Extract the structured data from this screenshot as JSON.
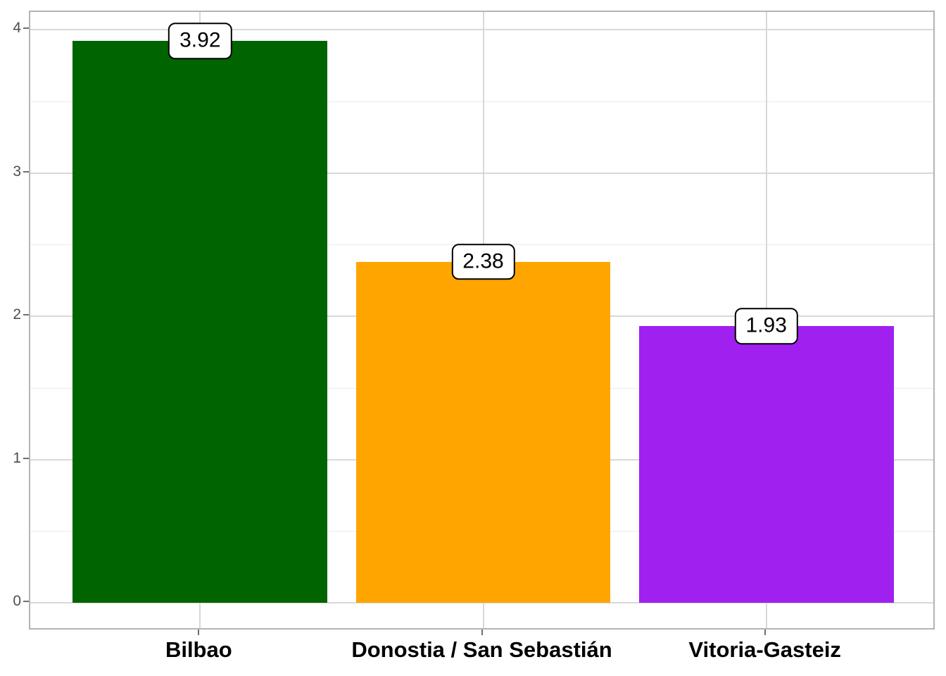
{
  "chart_data": {
    "type": "bar",
    "categories": [
      "Bilbao",
      "Donostia / San Sebastián",
      "Vitoria-Gasteiz"
    ],
    "values": [
      3.92,
      2.38,
      1.93
    ],
    "bar_labels": [
      "3.92",
      "2.38",
      "1.93"
    ],
    "bar_colors": [
      "#006400",
      "#FFA500",
      "#A020F0"
    ],
    "title": "",
    "xlabel": "",
    "ylabel": "",
    "y_ticks": [
      0,
      1,
      2,
      3,
      4
    ],
    "y_tick_labels": [
      "0",
      "1",
      "2",
      "3",
      "4"
    ],
    "y_minor_ticks": [
      0.5,
      1.5,
      2.5,
      3.5
    ],
    "ylim": [
      0,
      4
    ],
    "grid": "horizontal major+minor, vertical major at category centers",
    "legend": "none",
    "value_label_style": "white rounded box, black border, centered on bar top"
  },
  "styles": {
    "background": "#ffffff",
    "panel_border": "#b4b4b4",
    "grid_major": "#d8d8d8",
    "grid_minor": "#ebebeb",
    "tick_mark_color": "#6e6e6e",
    "y_tick_label_color": "#4d4d4d",
    "x_tick_label_color": "#000000",
    "bar_label_bg": "#ffffff",
    "bar_label_border": "#000000"
  }
}
